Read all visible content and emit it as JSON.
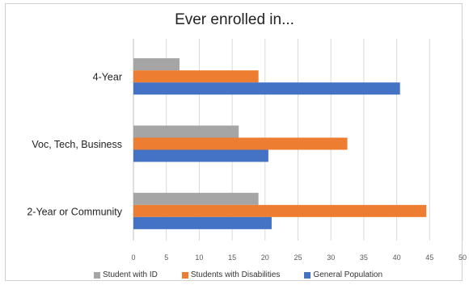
{
  "chart_data": {
    "type": "bar",
    "orientation": "horizontal",
    "title": "Ever enrolled in...",
    "xlabel": "",
    "ylabel": "",
    "xlim": [
      0,
      50
    ],
    "x_ticks": [
      "0",
      "5",
      "10",
      "15",
      "20",
      "25",
      "30",
      "35",
      "40",
      "45",
      "50"
    ],
    "categories": [
      "4-Year",
      "Voc, Tech, Business",
      "2-Year or Community"
    ],
    "series": [
      {
        "name": "Student with ID",
        "color": "#a5a5a5",
        "values": [
          7,
          16,
          19
        ]
      },
      {
        "name": "Students with Disabilities",
        "color": "#ed7d31",
        "values": [
          19,
          32.5,
          44.5
        ]
      },
      {
        "name": "General Population",
        "color": "#4472c4",
        "values": [
          40.5,
          20.5,
          21
        ]
      }
    ],
    "grid": true,
    "legend_position": "bottom"
  }
}
